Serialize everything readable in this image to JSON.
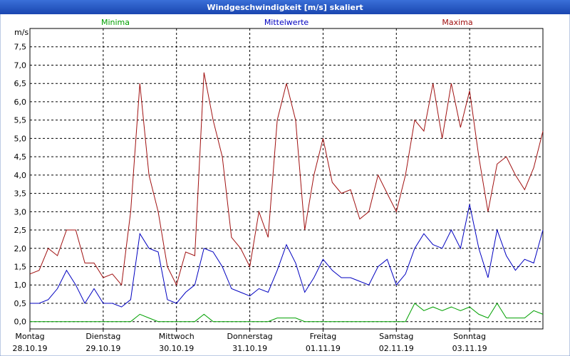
{
  "chart_data": {
    "type": "line",
    "title": "Windgeschwindigkeit [m/s] skaliert",
    "y_label": "m/s",
    "x": [
      0,
      3,
      6,
      9,
      12,
      15,
      18,
      21,
      24,
      27,
      30,
      33,
      36,
      39,
      42,
      45,
      48,
      51,
      54,
      57,
      60,
      63,
      66,
      69,
      72,
      75,
      78,
      81,
      84,
      87,
      90,
      93,
      96,
      99,
      102,
      105,
      108,
      111,
      114,
      117,
      120,
      123,
      126,
      129,
      132,
      135,
      138,
      141,
      144,
      147,
      150,
      153,
      156,
      159,
      162,
      165,
      168
    ],
    "series": [
      {
        "name": "Minima",
        "color": "#00a000",
        "values": [
          0,
          0,
          0,
          0,
          0,
          0,
          0,
          0,
          0,
          0,
          0,
          0,
          0.2,
          0.1,
          0,
          0,
          0,
          0,
          0,
          0.2,
          0,
          0,
          0,
          0,
          0,
          0,
          0,
          0.1,
          0.1,
          0.1,
          0,
          0,
          0,
          0,
          0,
          0,
          0,
          0,
          0,
          0,
          0,
          0,
          0.5,
          0.3,
          0.4,
          0.3,
          0.4,
          0.3,
          0.4,
          0.2,
          0.1,
          0.5,
          0.1,
          0.1,
          0.1,
          0.3,
          0.2
        ]
      },
      {
        "name": "Mittelwerte",
        "color": "#0000c0",
        "values": [
          0.5,
          0.5,
          0.6,
          0.9,
          1.4,
          1.0,
          0.5,
          0.9,
          0.5,
          0.5,
          0.4,
          0.6,
          2.4,
          2.0,
          1.9,
          0.6,
          0.5,
          0.8,
          1.0,
          2.0,
          1.9,
          1.5,
          0.9,
          0.8,
          0.7,
          0.9,
          0.8,
          1.4,
          2.1,
          1.6,
          0.8,
          1.2,
          1.7,
          1.4,
          1.2,
          1.2,
          1.1,
          1.0,
          1.5,
          1.7,
          1.0,
          1.3,
          2.0,
          2.4,
          2.1,
          2.0,
          2.5,
          2.0,
          3.2,
          2.0,
          1.2,
          2.5,
          1.8,
          1.4,
          1.7,
          1.6,
          2.5
        ]
      },
      {
        "name": "Maxima",
        "color": "#a01010",
        "values": [
          1.3,
          1.4,
          2.0,
          1.8,
          2.5,
          2.5,
          1.6,
          1.6,
          1.2,
          1.3,
          1.0,
          3.0,
          6.5,
          4.0,
          3.0,
          1.5,
          1.0,
          1.9,
          1.8,
          6.8,
          5.5,
          4.5,
          2.3,
          2.0,
          1.5,
          3.0,
          2.3,
          5.5,
          6.5,
          5.5,
          2.5,
          4.0,
          5.0,
          3.8,
          3.5,
          3.6,
          2.8,
          3.0,
          4.0,
          3.5,
          3.0,
          4.0,
          5.5,
          5.2,
          6.5,
          5.0,
          6.5,
          5.3,
          6.3,
          4.5,
          3.0,
          4.3,
          4.5,
          4.0,
          3.6,
          4.2,
          5.2
        ]
      }
    ],
    "xlim": [
      0,
      168
    ],
    "xticks": [
      {
        "value": 0,
        "label": "Montag"
      },
      {
        "value": 24,
        "label": "Dienstag"
      },
      {
        "value": 48,
        "label": "Mittwoch"
      },
      {
        "value": 72,
        "label": "Donnerstag"
      },
      {
        "value": 96,
        "label": "Freitag"
      },
      {
        "value": 120,
        "label": "Samstag"
      },
      {
        "value": 144,
        "label": "Sonntag"
      }
    ],
    "xtick_dates": [
      "28.10.19",
      "29.10.19",
      "30.10.19",
      "31.10.19",
      "01.11.19",
      "02.11.19",
      "03.11.19"
    ],
    "ylim": [
      -0.2,
      8.0
    ],
    "yticks": [
      {
        "value": 0,
        "label": "0,0"
      },
      {
        "value": 0.5,
        "label": "0,5"
      },
      {
        "value": 1,
        "label": "1,0"
      },
      {
        "value": 1.5,
        "label": "1,5"
      },
      {
        "value": 2,
        "label": "2,0"
      },
      {
        "value": 2.5,
        "label": "2,5"
      },
      {
        "value": 3,
        "label": "3,0"
      },
      {
        "value": 3.5,
        "label": "3,5"
      },
      {
        "value": 4,
        "label": "4,0"
      },
      {
        "value": 4.5,
        "label": "4,5"
      },
      {
        "value": 5,
        "label": "5,0"
      },
      {
        "value": 5.5,
        "label": "5,5"
      },
      {
        "value": 6,
        "label": "6,0"
      },
      {
        "value": 6.5,
        "label": "6,5"
      },
      {
        "value": 7,
        "label": "7,0"
      },
      {
        "value": 7.5,
        "label": "7,5"
      }
    ],
    "grid": true
  }
}
